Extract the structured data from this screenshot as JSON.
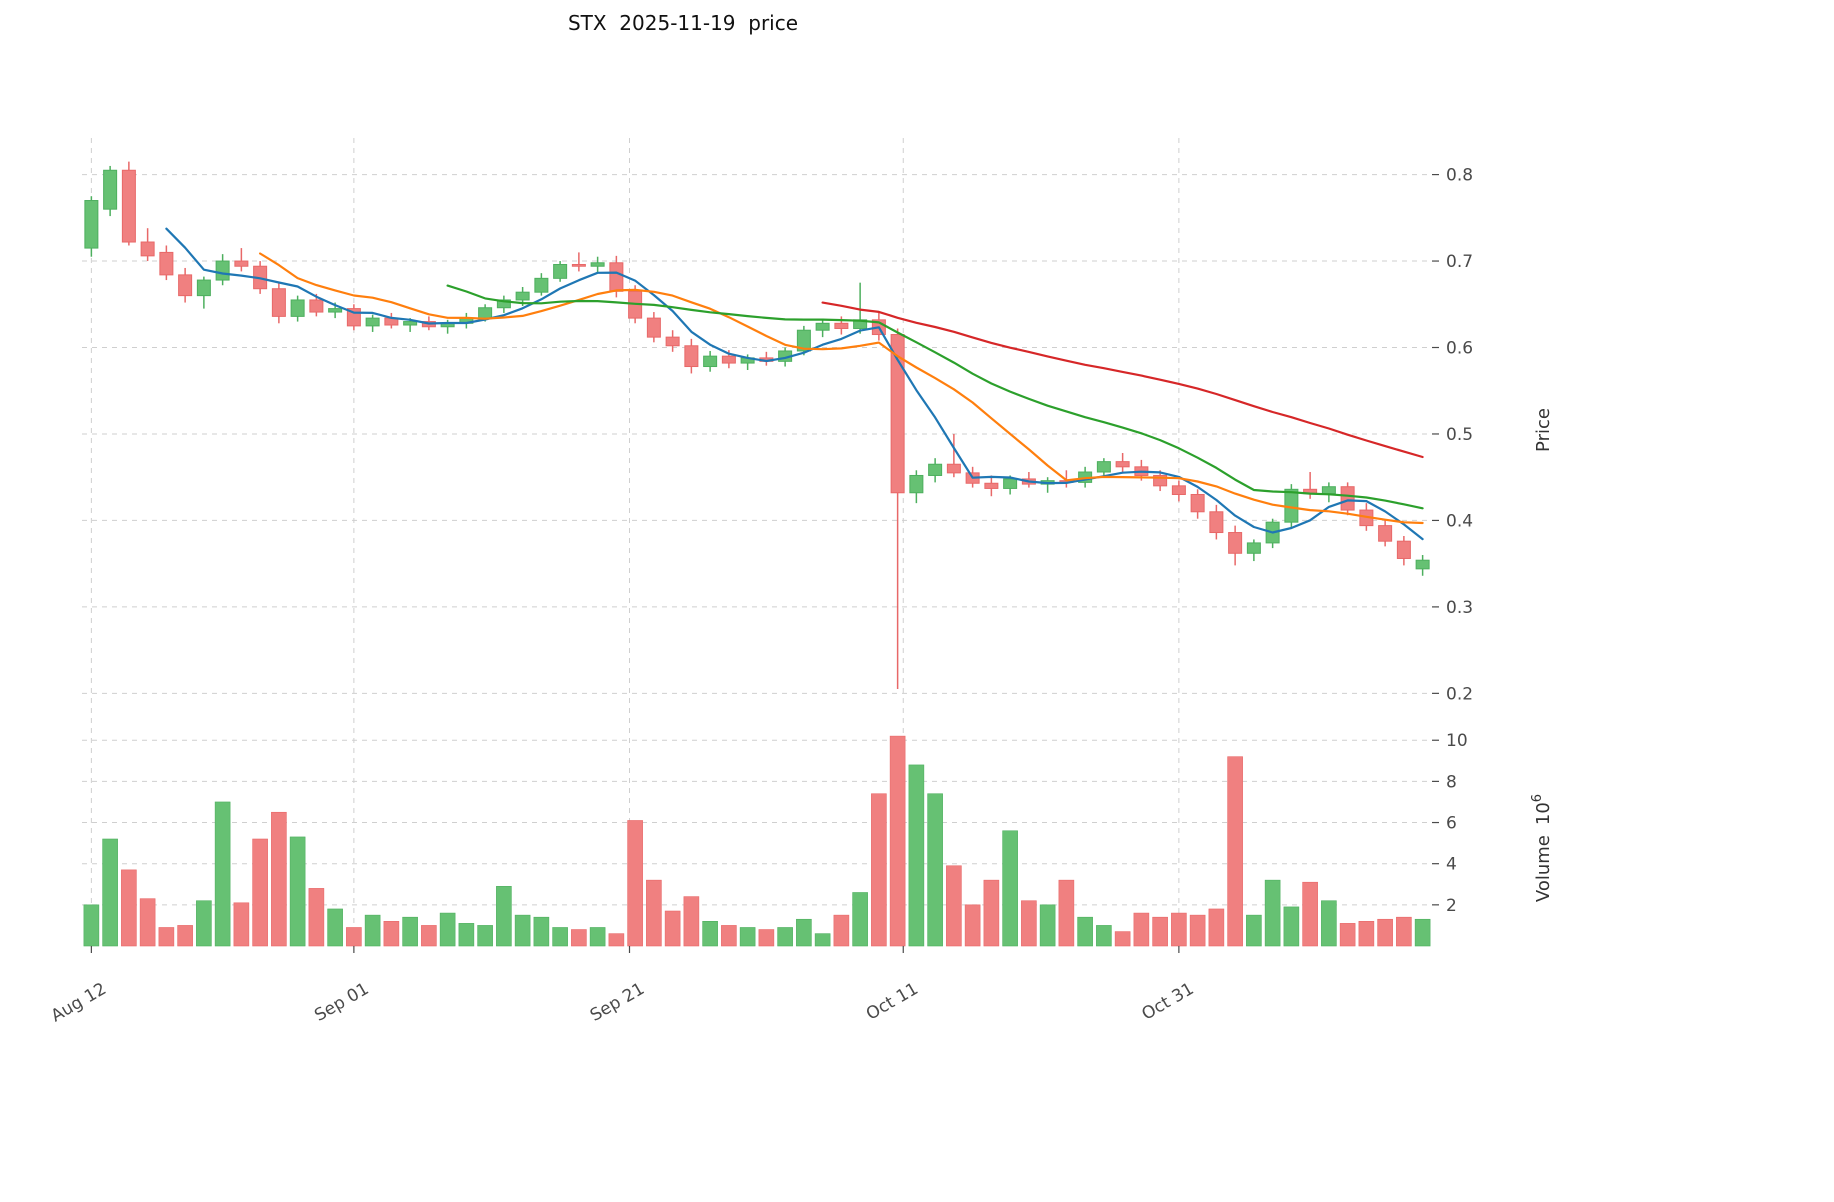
{
  "title": "STX  2025-11-19  price",
  "chart_data": {
    "type": "candlestick_volume",
    "grid": "dashed",
    "legend": false,
    "x_ticks": [
      {
        "pos": 0,
        "label": "Aug 12"
      },
      {
        "pos": 14,
        "label": "Sep 01"
      },
      {
        "pos": 28.7,
        "label": "Sep 21"
      },
      {
        "pos": 43.3,
        "label": "Oct 11"
      },
      {
        "pos": 58,
        "label": "Oct 31"
      }
    ],
    "price_axis": {
      "label": "Price",
      "ticks": [
        "0.2",
        "0.3",
        "0.4",
        "0.5",
        "0.6",
        "0.7",
        "0.8"
      ],
      "range": [
        0.19,
        0.84
      ]
    },
    "volume_axis": {
      "label": "Volume",
      "base": "10",
      "exponent": "6",
      "ticks": [
        "2",
        "4",
        "6",
        "8",
        "10"
      ],
      "range": [
        0,
        10.4
      ]
    },
    "moving_averages": [
      {
        "period": 5,
        "color": "#1f77b4"
      },
      {
        "period": 10,
        "color": "#ff7f0e"
      },
      {
        "period": 20,
        "color": "#2ca02c"
      },
      {
        "period": 40,
        "color": "#d62728"
      }
    ],
    "colors": {
      "up": "#66c173",
      "up_edge": "#4daf5e",
      "down": "#f08080",
      "down_edge": "#e86868",
      "grid": "#cfcfcf",
      "text": "#4a4a4a",
      "title": "#111111"
    },
    "candles": [
      {
        "d": "2025-08-12",
        "o": 0.715,
        "h": 0.775,
        "l": 0.705,
        "c": 0.77,
        "v": 2.0
      },
      {
        "d": "2025-08-13",
        "o": 0.76,
        "h": 0.81,
        "l": 0.752,
        "c": 0.805,
        "v": 5.2
      },
      {
        "d": "2025-08-14",
        "o": 0.805,
        "h": 0.815,
        "l": 0.718,
        "c": 0.722,
        "v": 3.7
      },
      {
        "d": "2025-08-15",
        "o": 0.722,
        "h": 0.738,
        "l": 0.7,
        "c": 0.706,
        "v": 2.3
      },
      {
        "d": "2025-08-18",
        "o": 0.71,
        "h": 0.718,
        "l": 0.678,
        "c": 0.684,
        "v": 0.9
      },
      {
        "d": "2025-08-19",
        "o": 0.684,
        "h": 0.692,
        "l": 0.652,
        "c": 0.66,
        "v": 1.0
      },
      {
        "d": "2025-08-20",
        "o": 0.66,
        "h": 0.682,
        "l": 0.645,
        "c": 0.678,
        "v": 2.2
      },
      {
        "d": "2025-08-21",
        "o": 0.678,
        "h": 0.708,
        "l": 0.672,
        "c": 0.7,
        "v": 7.0
      },
      {
        "d": "2025-08-22",
        "o": 0.7,
        "h": 0.715,
        "l": 0.688,
        "c": 0.694,
        "v": 2.1
      },
      {
        "d": "2025-08-25",
        "o": 0.694,
        "h": 0.7,
        "l": 0.662,
        "c": 0.668,
        "v": 5.2
      },
      {
        "d": "2025-08-26",
        "o": 0.668,
        "h": 0.676,
        "l": 0.628,
        "c": 0.636,
        "v": 6.5
      },
      {
        "d": "2025-08-27",
        "o": 0.636,
        "h": 0.66,
        "l": 0.63,
        "c": 0.655,
        "v": 5.3
      },
      {
        "d": "2025-08-28",
        "o": 0.655,
        "h": 0.662,
        "l": 0.636,
        "c": 0.641,
        "v": 2.8
      },
      {
        "d": "2025-08-29",
        "o": 0.641,
        "h": 0.652,
        "l": 0.634,
        "c": 0.645,
        "v": 1.8
      },
      {
        "d": "2025-09-01",
        "o": 0.645,
        "h": 0.65,
        "l": 0.62,
        "c": 0.625,
        "v": 0.9
      },
      {
        "d": "2025-09-02",
        "o": 0.625,
        "h": 0.638,
        "l": 0.618,
        "c": 0.634,
        "v": 1.5
      },
      {
        "d": "2025-09-03",
        "o": 0.634,
        "h": 0.64,
        "l": 0.622,
        "c": 0.626,
        "v": 1.2
      },
      {
        "d": "2025-09-04",
        "o": 0.626,
        "h": 0.634,
        "l": 0.618,
        "c": 0.63,
        "v": 1.4
      },
      {
        "d": "2025-09-05",
        "o": 0.63,
        "h": 0.636,
        "l": 0.62,
        "c": 0.624,
        "v": 1.0
      },
      {
        "d": "2025-09-08",
        "o": 0.624,
        "h": 0.632,
        "l": 0.616,
        "c": 0.628,
        "v": 1.6
      },
      {
        "d": "2025-09-09",
        "o": 0.628,
        "h": 0.64,
        "l": 0.622,
        "c": 0.634,
        "v": 1.1
      },
      {
        "d": "2025-09-10",
        "o": 0.634,
        "h": 0.65,
        "l": 0.63,
        "c": 0.646,
        "v": 1.0
      },
      {
        "d": "2025-09-11",
        "o": 0.646,
        "h": 0.66,
        "l": 0.64,
        "c": 0.655,
        "v": 2.9
      },
      {
        "d": "2025-09-12",
        "o": 0.655,
        "h": 0.67,
        "l": 0.648,
        "c": 0.664,
        "v": 1.5
      },
      {
        "d": "2025-09-15",
        "o": 0.664,
        "h": 0.686,
        "l": 0.66,
        "c": 0.68,
        "v": 1.4
      },
      {
        "d": "2025-09-16",
        "o": 0.68,
        "h": 0.7,
        "l": 0.676,
        "c": 0.696,
        "v": 0.9
      },
      {
        "d": "2025-09-17",
        "o": 0.696,
        "h": 0.71,
        "l": 0.688,
        "c": 0.694,
        "v": 0.8
      },
      {
        "d": "2025-09-18",
        "o": 0.694,
        "h": 0.705,
        "l": 0.686,
        "c": 0.698,
        "v": 0.9
      },
      {
        "d": "2025-09-19",
        "o": 0.698,
        "h": 0.706,
        "l": 0.658,
        "c": 0.665,
        "v": 0.6
      },
      {
        "d": "2025-09-22",
        "o": 0.665,
        "h": 0.672,
        "l": 0.628,
        "c": 0.634,
        "v": 6.1
      },
      {
        "d": "2025-09-23",
        "o": 0.634,
        "h": 0.641,
        "l": 0.606,
        "c": 0.612,
        "v": 3.2
      },
      {
        "d": "2025-09-24",
        "o": 0.612,
        "h": 0.62,
        "l": 0.595,
        "c": 0.602,
        "v": 1.7
      },
      {
        "d": "2025-09-25",
        "o": 0.602,
        "h": 0.61,
        "l": 0.57,
        "c": 0.578,
        "v": 2.4
      },
      {
        "d": "2025-09-26",
        "o": 0.578,
        "h": 0.596,
        "l": 0.572,
        "c": 0.59,
        "v": 1.2
      },
      {
        "d": "2025-09-29",
        "o": 0.59,
        "h": 0.597,
        "l": 0.576,
        "c": 0.582,
        "v": 1.0
      },
      {
        "d": "2025-09-30",
        "o": 0.582,
        "h": 0.592,
        "l": 0.574,
        "c": 0.588,
        "v": 0.9
      },
      {
        "d": "2025-10-01",
        "o": 0.588,
        "h": 0.595,
        "l": 0.579,
        "c": 0.584,
        "v": 0.8
      },
      {
        "d": "2025-10-02",
        "o": 0.584,
        "h": 0.6,
        "l": 0.578,
        "c": 0.596,
        "v": 0.9
      },
      {
        "d": "2025-10-03",
        "o": 0.596,
        "h": 0.625,
        "l": 0.591,
        "c": 0.62,
        "v": 1.3
      },
      {
        "d": "2025-10-06",
        "o": 0.62,
        "h": 0.633,
        "l": 0.612,
        "c": 0.628,
        "v": 0.6
      },
      {
        "d": "2025-10-07",
        "o": 0.628,
        "h": 0.636,
        "l": 0.615,
        "c": 0.622,
        "v": 1.5
      },
      {
        "d": "2025-10-08",
        "o": 0.622,
        "h": 0.675,
        "l": 0.616,
        "c": 0.632,
        "v": 2.6
      },
      {
        "d": "2025-10-09",
        "o": 0.632,
        "h": 0.64,
        "l": 0.608,
        "c": 0.615,
        "v": 7.4
      },
      {
        "d": "2025-10-10",
        "o": 0.615,
        "h": 0.622,
        "l": 0.205,
        "c": 0.432,
        "v": 10.2
      },
      {
        "d": "2025-10-13",
        "o": 0.432,
        "h": 0.458,
        "l": 0.42,
        "c": 0.452,
        "v": 8.8
      },
      {
        "d": "2025-10-14",
        "o": 0.452,
        "h": 0.472,
        "l": 0.444,
        "c": 0.465,
        "v": 7.4
      },
      {
        "d": "2025-10-15",
        "o": 0.465,
        "h": 0.5,
        "l": 0.45,
        "c": 0.455,
        "v": 3.9
      },
      {
        "d": "2025-10-16",
        "o": 0.455,
        "h": 0.462,
        "l": 0.438,
        "c": 0.443,
        "v": 2.0
      },
      {
        "d": "2025-10-17",
        "o": 0.443,
        "h": 0.452,
        "l": 0.428,
        "c": 0.437,
        "v": 3.2
      },
      {
        "d": "2025-10-20",
        "o": 0.437,
        "h": 0.452,
        "l": 0.43,
        "c": 0.448,
        "v": 5.6
      },
      {
        "d": "2025-10-21",
        "o": 0.448,
        "h": 0.456,
        "l": 0.438,
        "c": 0.442,
        "v": 2.2
      },
      {
        "d": "2025-10-22",
        "o": 0.442,
        "h": 0.45,
        "l": 0.432,
        "c": 0.446,
        "v": 2.0
      },
      {
        "d": "2025-10-23",
        "o": 0.446,
        "h": 0.458,
        "l": 0.438,
        "c": 0.444,
        "v": 3.2
      },
      {
        "d": "2025-10-24",
        "o": 0.444,
        "h": 0.462,
        "l": 0.438,
        "c": 0.456,
        "v": 1.4
      },
      {
        "d": "2025-10-27",
        "o": 0.456,
        "h": 0.472,
        "l": 0.45,
        "c": 0.468,
        "v": 1.0
      },
      {
        "d": "2025-10-28",
        "o": 0.468,
        "h": 0.478,
        "l": 0.456,
        "c": 0.462,
        "v": 0.7
      },
      {
        "d": "2025-10-29",
        "o": 0.462,
        "h": 0.47,
        "l": 0.446,
        "c": 0.452,
        "v": 1.6
      },
      {
        "d": "2025-10-30",
        "o": 0.452,
        "h": 0.458,
        "l": 0.434,
        "c": 0.44,
        "v": 1.4
      },
      {
        "d": "2025-10-31",
        "o": 0.44,
        "h": 0.446,
        "l": 0.422,
        "c": 0.43,
        "v": 1.6
      },
      {
        "d": "2025-11-03",
        "o": 0.43,
        "h": 0.436,
        "l": 0.402,
        "c": 0.41,
        "v": 1.5
      },
      {
        "d": "2025-11-04",
        "o": 0.41,
        "h": 0.418,
        "l": 0.378,
        "c": 0.386,
        "v": 1.8
      },
      {
        "d": "2025-11-05",
        "o": 0.386,
        "h": 0.394,
        "l": 0.348,
        "c": 0.362,
        "v": 9.2
      },
      {
        "d": "2025-11-06",
        "o": 0.362,
        "h": 0.378,
        "l": 0.353,
        "c": 0.374,
        "v": 1.5
      },
      {
        "d": "2025-11-07",
        "o": 0.374,
        "h": 0.402,
        "l": 0.368,
        "c": 0.398,
        "v": 3.2
      },
      {
        "d": "2025-11-10",
        "o": 0.398,
        "h": 0.442,
        "l": 0.392,
        "c": 0.436,
        "v": 1.9
      },
      {
        "d": "2025-11-11",
        "o": 0.436,
        "h": 0.456,
        "l": 0.425,
        "c": 0.431,
        "v": 3.1
      },
      {
        "d": "2025-11-12",
        "o": 0.431,
        "h": 0.444,
        "l": 0.421,
        "c": 0.439,
        "v": 2.2
      },
      {
        "d": "2025-11-13",
        "o": 0.439,
        "h": 0.444,
        "l": 0.406,
        "c": 0.412,
        "v": 1.1
      },
      {
        "d": "2025-11-14",
        "o": 0.412,
        "h": 0.42,
        "l": 0.388,
        "c": 0.394,
        "v": 1.2
      },
      {
        "d": "2025-11-17",
        "o": 0.394,
        "h": 0.4,
        "l": 0.37,
        "c": 0.376,
        "v": 1.3
      },
      {
        "d": "2025-11-18",
        "o": 0.376,
        "h": 0.382,
        "l": 0.348,
        "c": 0.356,
        "v": 1.4
      },
      {
        "d": "2025-11-19",
        "o": 0.344,
        "h": 0.36,
        "l": 0.336,
        "c": 0.354,
        "v": 1.3
      }
    ]
  }
}
